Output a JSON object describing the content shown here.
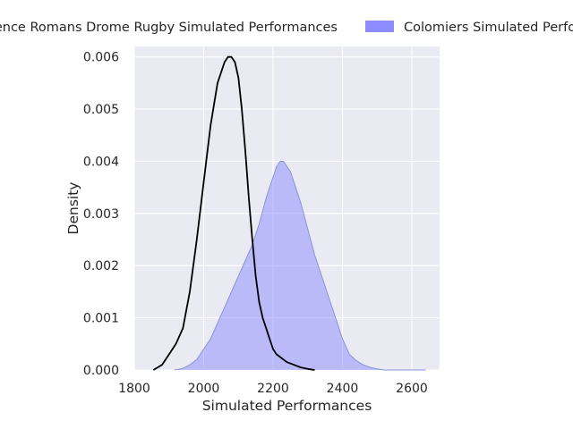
{
  "chart_data": {
    "type": "area",
    "title": "",
    "xlabel": "Simulated Performances",
    "ylabel": "Density",
    "xlim": [
      1800,
      2680
    ],
    "ylim": [
      0,
      0.0062
    ],
    "x_ticks": [
      1800,
      2000,
      2200,
      2400,
      2600
    ],
    "y_ticks": [
      0.0,
      0.001,
      0.002,
      0.003,
      0.004,
      0.005,
      0.006
    ],
    "x_tick_labels": [
      "1800",
      "2000",
      "2200",
      "2400",
      "2600"
    ],
    "y_tick_labels": [
      "0.000",
      "0.001",
      "0.002",
      "0.003",
      "0.004",
      "0.005",
      "0.006"
    ],
    "grid": true,
    "legend_position": "top",
    "series": [
      {
        "name": "Valence Romans Drome Rugby Simulated Performances",
        "style": "line",
        "color": "#000000",
        "x": [
          1855,
          1880,
          1900,
          1920,
          1940,
          1960,
          1980,
          2000,
          2020,
          2040,
          2060,
          2070,
          2080,
          2090,
          2100,
          2110,
          2120,
          2130,
          2140,
          2150,
          2160,
          2170,
          2180,
          2190,
          2200,
          2210,
          2220,
          2230,
          2240,
          2260,
          2280,
          2300,
          2320
        ],
        "values": [
          0.0,
          0.0001,
          0.0003,
          0.0005,
          0.0008,
          0.0015,
          0.0025,
          0.0036,
          0.0047,
          0.0055,
          0.0059,
          0.006,
          0.006,
          0.0059,
          0.0056,
          0.005,
          0.0042,
          0.0033,
          0.0025,
          0.0018,
          0.0013,
          0.001,
          0.0008,
          0.0006,
          0.0004,
          0.0003,
          0.00025,
          0.0002,
          0.00015,
          0.0001,
          5e-05,
          2e-05,
          0.0
        ]
      },
      {
        "name": "Colomiers Simulated Performances",
        "style": "area",
        "color": "#8080ff",
        "x": [
          1915,
          1940,
          1960,
          1980,
          2000,
          2020,
          2040,
          2060,
          2080,
          2100,
          2120,
          2140,
          2160,
          2180,
          2200,
          2210,
          2220,
          2230,
          2240,
          2250,
          2260,
          2280,
          2300,
          2320,
          2340,
          2360,
          2380,
          2400,
          2420,
          2440,
          2460,
          2480,
          2500,
          2520,
          2540,
          2560,
          2580,
          2600,
          2620,
          2640
        ],
        "values": [
          0.0,
          3e-05,
          0.0001,
          0.0002,
          0.0004,
          0.0006,
          0.0009,
          0.0012,
          0.0015,
          0.0018,
          0.0021,
          0.0024,
          0.0028,
          0.0033,
          0.0037,
          0.0039,
          0.004,
          0.004,
          0.0039,
          0.0038,
          0.0036,
          0.0032,
          0.0027,
          0.0022,
          0.0018,
          0.0014,
          0.001,
          0.0006,
          0.0003,
          0.00018,
          0.0001,
          5e-05,
          2e-05,
          0.0,
          0.0,
          0.0,
          0.0,
          0.0,
          0.0,
          0.0
        ]
      }
    ]
  }
}
